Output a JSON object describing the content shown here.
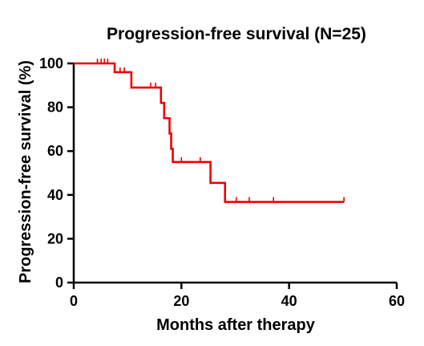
{
  "chart_data": {
    "type": "line",
    "title": "Progression-free survival (N=25)",
    "xlabel": "Months after therapy",
    "ylabel": "Progression-free survival (%)",
    "xlim": [
      0,
      60
    ],
    "ylim": [
      0,
      100
    ],
    "xticks": [
      "0",
      "20",
      "40",
      "60"
    ],
    "yticks": [
      "0",
      "20",
      "40",
      "60",
      "80",
      "100"
    ],
    "grid": false,
    "series": [
      {
        "step_points": [
          [
            0,
            100
          ],
          [
            7.6,
            100
          ],
          [
            7.6,
            96
          ],
          [
            10.7,
            96
          ],
          [
            10.7,
            89
          ],
          [
            16.2,
            89
          ],
          [
            16.2,
            82
          ],
          [
            16.8,
            82
          ],
          [
            16.8,
            75
          ],
          [
            17.8,
            75
          ],
          [
            17.8,
            68
          ],
          [
            18.1,
            68
          ],
          [
            18.1,
            61
          ],
          [
            18.4,
            61
          ],
          [
            18.4,
            55
          ],
          [
            25.4,
            55
          ],
          [
            25.4,
            45.5
          ],
          [
            28.1,
            45.5
          ],
          [
            28.1,
            36.8
          ],
          [
            50.2,
            36.8
          ]
        ],
        "censor_x": [
          4.4,
          5.1,
          5.7,
          6.3,
          8.6,
          9.4,
          14.3,
          15.2,
          20,
          23.5,
          30.2,
          32.6,
          37.1,
          50.2
        ],
        "color": "#ee0000"
      }
    ]
  }
}
